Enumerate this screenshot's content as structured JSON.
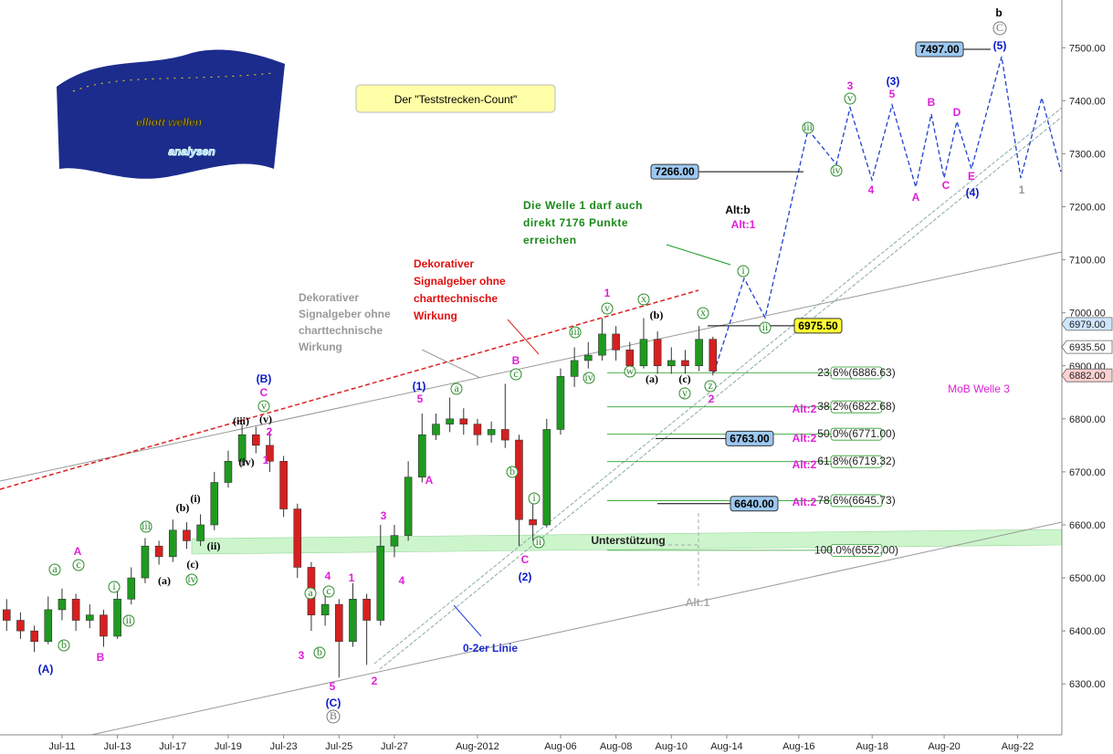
{
  "chart_data": {
    "type": "candlestick",
    "title": "Der \"Teststrecken-Count\"",
    "xlim": [
      -1.24,
      37.1
    ],
    "xticks": [
      {
        "value": 1,
        "label": "Jul-11"
      },
      {
        "value": 3,
        "label": "Jul-13"
      },
      {
        "value": 5,
        "label": "Jul-17"
      },
      {
        "value": 7,
        "label": "Jul-19"
      },
      {
        "value": 9,
        "label": "Jul-23"
      },
      {
        "value": 11,
        "label": "Jul-25"
      },
      {
        "value": 13,
        "label": "Jul-27"
      },
      {
        "value": 16,
        "label": "Aug-2012"
      },
      {
        "value": 19,
        "label": "Aug-06"
      },
      {
        "value": 21,
        "label": "Aug-08"
      },
      {
        "value": 23,
        "label": "Aug-10"
      },
      {
        "value": 25,
        "label": "Aug-14"
      },
      {
        "value": 27.6,
        "label": "Aug-16"
      },
      {
        "value": 30.25,
        "label": "Aug-18"
      },
      {
        "value": 32.85,
        "label": "Aug-20"
      },
      {
        "value": 35.5,
        "label": "Aug-22"
      }
    ],
    "ylim": [
      6204,
      7590
    ],
    "yticks": [
      {
        "value": 6300,
        "label": "6300.00"
      },
      {
        "value": 6400,
        "label": "6400.00"
      },
      {
        "value": 6500,
        "label": "6500.00"
      },
      {
        "value": 6600,
        "label": "6600.00"
      },
      {
        "value": 6700,
        "label": "6700.00"
      },
      {
        "value": 6800,
        "label": "6800.00"
      },
      {
        "value": 6900,
        "label": "6900.00"
      },
      {
        "value": 7000,
        "label": "7000.00"
      },
      {
        "value": 7100,
        "label": "7100.00"
      },
      {
        "value": 7200,
        "label": "7200.00"
      },
      {
        "value": 7300,
        "label": "7300.00"
      },
      {
        "value": 7400,
        "label": "7400.00"
      },
      {
        "value": 7500,
        "label": "7500.00"
      }
    ],
    "colors": {
      "up": "#1f9a1f",
      "down": "#d62020"
    },
    "x": [
      -1,
      -0.5,
      0,
      0.5,
      1,
      1.5,
      2,
      2.5,
      3,
      3.5,
      4,
      4.5,
      5,
      5.5,
      6,
      6.5,
      7,
      7.5,
      8,
      8.5,
      9,
      9.5,
      10,
      10.5,
      11,
      11.5,
      12,
      12.5,
      13,
      13.5,
      14,
      14.5,
      15,
      15.5,
      16,
      16.5,
      17,
      17.5,
      18,
      18.5,
      19,
      19.5,
      20,
      20.5,
      21,
      21.5,
      22,
      22.5,
      23,
      23.5,
      24,
      24.5
    ],
    "open": [
      6440,
      6420,
      6400,
      6380,
      6440,
      6460,
      6420,
      6430,
      6390,
      6460,
      6500,
      6560,
      6540,
      6590,
      6570,
      6600,
      6680,
      6720,
      6770,
      6750,
      6720,
      6630,
      6520,
      6430,
      6450,
      6380,
      6460,
      6420,
      6560,
      6580,
      6690,
      6770,
      6790,
      6800,
      6790,
      6770,
      6780,
      6760,
      6610,
      6600,
      6780,
      6880,
      6910,
      6920,
      6960,
      6930,
      6900,
      6950,
      6900,
      6910,
      6900,
      6950
    ],
    "high": [
      6460,
      6435,
      6410,
      6465,
      6480,
      6470,
      6450,
      6440,
      6475,
      6520,
      6575,
      6570,
      6610,
      6605,
      6620,
      6700,
      6740,
      6790,
      6785,
      6775,
      6730,
      6640,
      6530,
      6480,
      6460,
      6490,
      6470,
      6600,
      6600,
      6720,
      6810,
      6810,
      6840,
      6820,
      6800,
      6795,
      6866,
      6770,
      6640,
      6800,
      6895,
      6935,
      6945,
      6990,
      6975,
      6945,
      6990,
      6965,
      6935,
      6930,
      6975,
      6955
    ],
    "low": [
      6400,
      6385,
      6360,
      6375,
      6420,
      6400,
      6405,
      6370,
      6385,
      6450,
      6490,
      6525,
      6530,
      6555,
      6560,
      6590,
      6670,
      6710,
      6735,
      6700,
      6615,
      6500,
      6400,
      6410,
      6312,
      6370,
      6336,
      6410,
      6539,
      6570,
      6680,
      6760,
      6775,
      6770,
      6750,
      6755,
      6745,
      6560,
      6570,
      6595,
      6770,
      6860,
      6895,
      6910,
      6910,
      6880,
      6895,
      6885,
      6885,
      6885,
      6890,
      6882
    ],
    "close": [
      6420,
      6400,
      6380,
      6440,
      6460,
      6420,
      6430,
      6390,
      6460,
      6500,
      6560,
      6540,
      6590,
      6570,
      6600,
      6680,
      6720,
      6770,
      6750,
      6720,
      6630,
      6520,
      6430,
      6450,
      6380,
      6460,
      6420,
      6560,
      6580,
      6690,
      6770,
      6790,
      6800,
      6790,
      6770,
      6780,
      6760,
      6610,
      6600,
      6780,
      6880,
      6910,
      6920,
      6960,
      6930,
      6900,
      6950,
      6900,
      6910,
      6900,
      6950,
      6890
    ],
    "fibonacci": [
      {
        "value": 6886.63,
        "label": "23.6%(6886.63)"
      },
      {
        "value": 6822.68,
        "label": "38.2%(6822.68)"
      },
      {
        "value": 6771.0,
        "label": "50.0%(6771.00)"
      },
      {
        "value": 6719.32,
        "label": "61.8%(6719.32)"
      },
      {
        "value": 6645.73,
        "label": "78.6%(6645.73)"
      },
      {
        "value": 6552.0,
        "label": "100.0%(6552.00)"
      }
    ],
    "price_levels": [
      {
        "value": 7497,
        "label": "7497.00"
      },
      {
        "value": 7266,
        "label": "7266.00"
      },
      {
        "value": 6975.5,
        "label": "6975.50"
      },
      {
        "value": 6763,
        "label": "6763.00"
      },
      {
        "value": 6640,
        "label": "6640.00"
      }
    ],
    "price_tags": [
      {
        "value": 6979,
        "label": "6979.00"
      },
      {
        "value": 6935.5,
        "label": "6935.50"
      },
      {
        "value": 6882,
        "label": "6882.00"
      }
    ],
    "wave_labels": {
      "pink": [
        "A",
        "B",
        "C",
        "2",
        "1",
        "3",
        "4",
        "5",
        "1",
        "2",
        "3",
        "4",
        "5",
        "A",
        "B",
        "C",
        "1",
        "2",
        "3",
        "5",
        "4",
        "A",
        "B",
        "C",
        "D",
        "E"
      ],
      "blue": [
        "(A)",
        "(B)",
        "(1)",
        "(C)",
        "(2)",
        "(3)",
        "(4)",
        "(5)"
      ],
      "subminor": [
        "(iii)",
        "(v)",
        "(iv)",
        "(b)",
        "(i)",
        "(c)",
        "(ii)",
        "(a)",
        "(b)",
        "(a)",
        "(c)"
      ],
      "circled": [
        "i",
        "ii",
        "iii",
        "iv",
        "a",
        "b",
        "c",
        "v",
        "a",
        "b",
        "c",
        "a",
        "b",
        "c",
        "i",
        "ii",
        "iii",
        "iv",
        "v",
        "w",
        "x",
        "y",
        "z",
        "x",
        "i",
        "ii",
        "iii",
        "iv",
        "v"
      ],
      "cycle": [
        "C",
        "B"
      ]
    },
    "labels": [
      "b",
      "Alt:b",
      "Alt:1",
      "Alt:2",
      "Alt:2",
      "Alt:2",
      "Alt:2",
      "Alt:1",
      "1",
      "MoB Welle 3",
      "Unterstützung",
      "0-2er Linie"
    ],
    "notes": {
      "green": [
        "Die Welle 1 darf auch",
        "direkt 7176 Punkte",
        "erreichen"
      ],
      "red": [
        "Dekorativer",
        "Signalgeber ohne",
        "charttechnische",
        "Wirkung"
      ],
      "gray": [
        "Dekorativer",
        "Signalgeber ohne",
        "charttechnische",
        "Wirkung"
      ]
    }
  },
  "logo": [
    "elliott wellen",
    "analysen"
  ]
}
